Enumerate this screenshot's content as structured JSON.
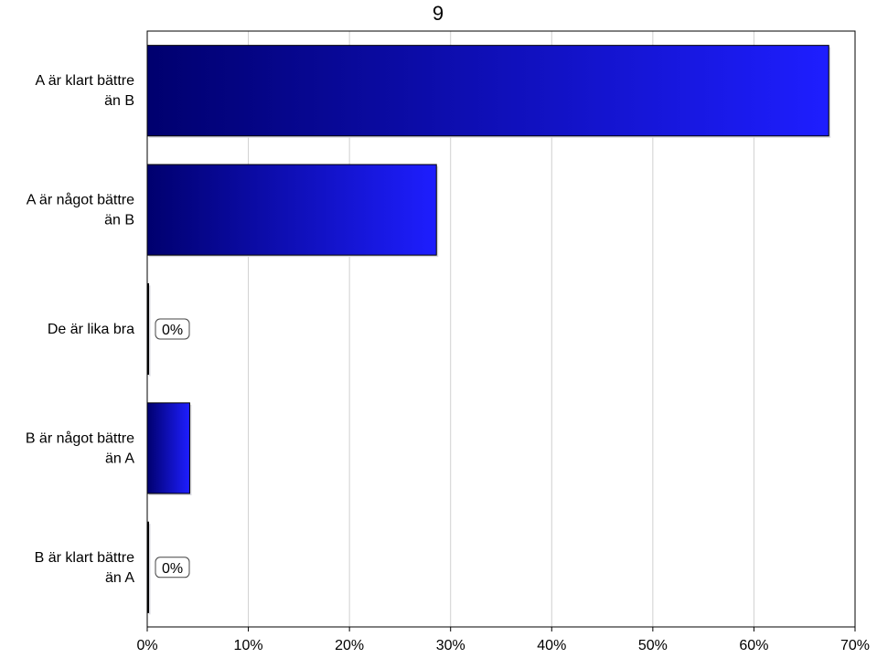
{
  "chart_data": {
    "type": "bar",
    "orientation": "horizontal",
    "title": "9",
    "categories": [
      [
        "A är klart bättre",
        "än B"
      ],
      [
        "A är något bättre",
        "än B"
      ],
      [
        "De är lika bra"
      ],
      [
        "B är något bättre",
        "än A"
      ],
      [
        "B är klart bättre",
        "än A"
      ]
    ],
    "values": [
      67.4,
      28.6,
      0,
      4.2,
      0
    ],
    "data_labels": [
      "",
      "",
      "0%",
      "",
      "0%"
    ],
    "xlim": [
      0,
      70
    ],
    "xticks": [
      "0%",
      "10%",
      "20%",
      "30%",
      "40%",
      "50%",
      "60%",
      "70%"
    ],
    "grid": true,
    "bar_gradient": [
      "#00006e",
      "#1e1eff"
    ]
  }
}
